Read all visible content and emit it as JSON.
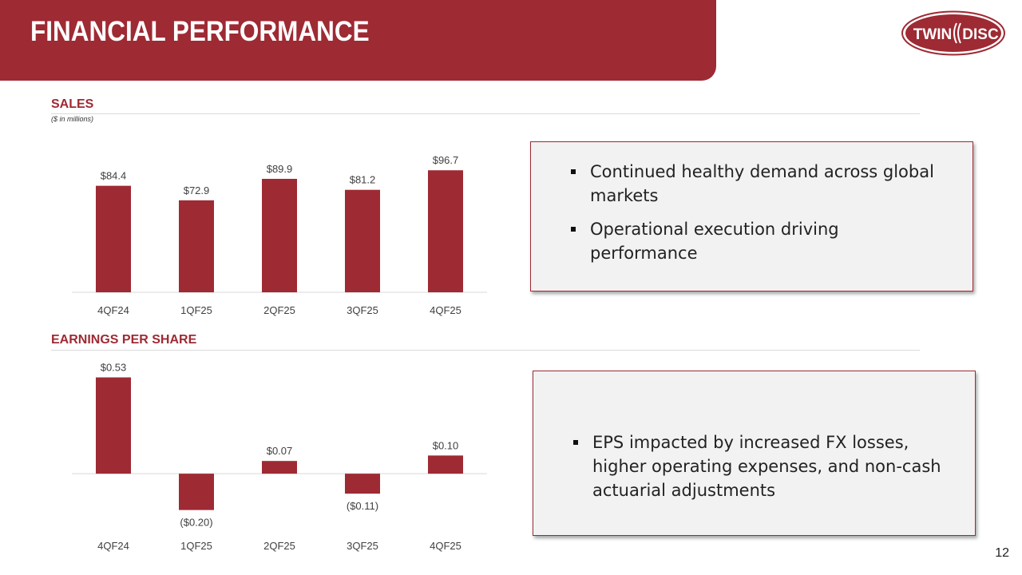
{
  "header": {
    "title": "FINANCIAL PERFORMANCE"
  },
  "logo": {
    "text_left": "TWIN",
    "text_right": "DISC",
    "brand_color": "#9E2A33"
  },
  "colors": {
    "accent": "#9E2A33",
    "bar": "#9E2A33",
    "axis": "#d9d9d9"
  },
  "sales": {
    "title": "SALES",
    "subtitle": "($ in millions)",
    "bullets": [
      "Continued healthy demand across global markets",
      "Operational execution driving performance"
    ]
  },
  "eps": {
    "title": "EARNINGS PER SHARE",
    "bullets": [
      "EPS impacted by increased FX losses, higher operating expenses, and non-cash actuarial adjustments"
    ]
  },
  "chart_data": [
    {
      "type": "bar",
      "title": "SALES",
      "subtitle": "($ in millions)",
      "categories": [
        "4QF24",
        "1QF25",
        "2QF25",
        "3QF25",
        "4QF25"
      ],
      "values": [
        84.4,
        72.9,
        89.9,
        81.2,
        96.7
      ],
      "labels": [
        "$84.4",
        "$72.9",
        "$89.9",
        "$81.2",
        "$96.7"
      ],
      "ylim": [
        0,
        100
      ],
      "grid": false,
      "legend": "none"
    },
    {
      "type": "bar",
      "title": "EARNINGS PER SHARE",
      "categories": [
        "4QF24",
        "1QF25",
        "2QF25",
        "3QF25",
        "4QF25"
      ],
      "values": [
        0.53,
        -0.2,
        0.07,
        -0.11,
        0.1
      ],
      "labels": [
        "$0.53",
        "($0.20)",
        "$0.07",
        "($0.11)",
        "$0.10"
      ],
      "ylim": [
        -0.25,
        0.55
      ],
      "grid": false,
      "legend": "none"
    }
  ],
  "page_number": "12"
}
